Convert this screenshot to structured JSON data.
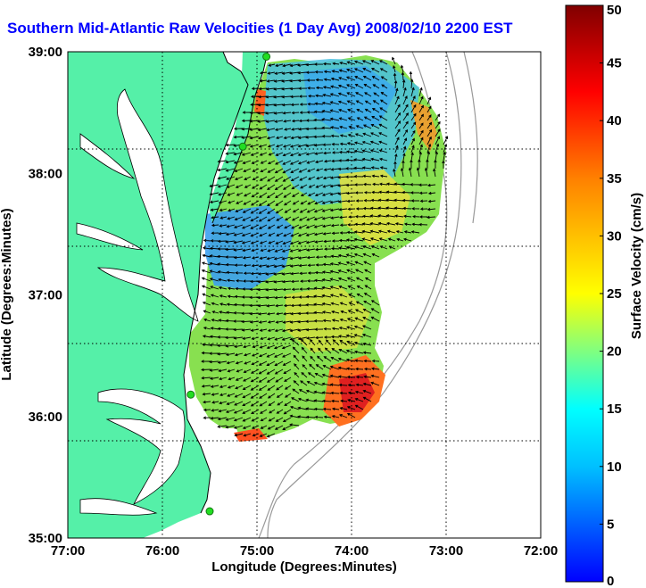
{
  "title": "Southern Mid-Atlantic Raw Velocities (1 Day Avg) 2008/02/10 2200 EST",
  "x_axis": {
    "label": "Longitude (Degrees:Minutes)",
    "ticks": [
      "77:00",
      "76:00",
      "75:00",
      "74:00",
      "73:00",
      "72:00"
    ],
    "range": [
      -77,
      -72
    ]
  },
  "y_axis": {
    "label": "Latitude (Degrees:Minutes)",
    "ticks": [
      "35:00",
      "36:00",
      "37:00",
      "38:00",
      "39:00"
    ],
    "range": [
      35,
      39
    ]
  },
  "colorbar": {
    "label": "Surface Velocity (cm/s)",
    "ticks": [
      "0",
      "5",
      "10",
      "15",
      "20",
      "25",
      "30",
      "35",
      "40",
      "45",
      "50"
    ],
    "range": [
      0,
      50
    ],
    "colors": [
      "#0000ff",
      "#00ffff",
      "#ffff00",
      "#ff8000",
      "#ff0000",
      "#800000"
    ]
  },
  "colors": {
    "land": "#55f0a8",
    "water": "#ffffff",
    "grid": "#000000",
    "title": "#0000ff",
    "vectors": "#000000",
    "stations": "#22dd22",
    "bathymetry": "#888888"
  },
  "stations": [
    {
      "lon": -74.9,
      "lat": 38.96
    },
    {
      "lon": -75.15,
      "lat": 38.22
    },
    {
      "lon": -75.7,
      "lat": 36.18
    },
    {
      "lon": -75.5,
      "lat": 35.22
    }
  ]
}
